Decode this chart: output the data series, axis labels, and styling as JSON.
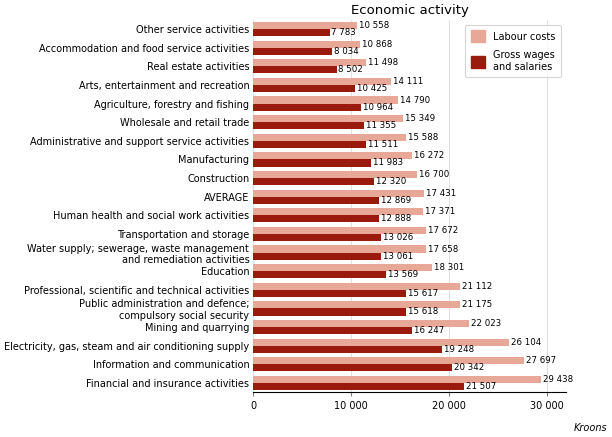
{
  "title": "Economic activity",
  "xlabel": "Kroons",
  "categories": [
    "Other service activities",
    "Accommodation and food service activities",
    "Real estate activities",
    "Arts, entertainment and recreation",
    "Agriculture, forestry and fishing",
    "Wholesale and retail trade",
    "Administrative and support service activities",
    "Manufacturing",
    "Construction",
    "AVERAGE",
    "Human health and social work activities",
    "Transportation and storage",
    "Water supply; sewerage, waste management\nand remediation activities",
    "Education",
    "Professional, scientific and technical activities",
    "Public administration and defence;\ncompulsory social security",
    "Mining and quarrying",
    "Electricity, gas, steam and air conditioning supply",
    "Information and communication",
    "Financial and insurance activities"
  ],
  "labour_costs": [
    10558,
    10868,
    11498,
    14111,
    14790,
    15349,
    15588,
    16272,
    16700,
    17431,
    17371,
    17672,
    17658,
    18301,
    21112,
    21175,
    22023,
    26104,
    27697,
    29438
  ],
  "gross_wages": [
    7783,
    8034,
    8502,
    10425,
    10964,
    11355,
    11511,
    11983,
    12320,
    12869,
    12888,
    13026,
    13061,
    13569,
    15617,
    15618,
    16247,
    19248,
    20342,
    21507
  ],
  "labour_color": "#e8a898",
  "gross_color": "#9b1a0e",
  "xlim": [
    0,
    32000
  ],
  "xticks": [
    0,
    10000,
    20000,
    30000
  ],
  "xticklabels": [
    "0",
    "10 000",
    "20 000",
    "30 000"
  ],
  "bar_height": 0.38,
  "legend_labour": "Labour costs",
  "legend_gross": "Gross wages\nand salaries",
  "value_fontsize": 6.2,
  "label_fontsize": 7.0,
  "title_fontsize": 9.5
}
